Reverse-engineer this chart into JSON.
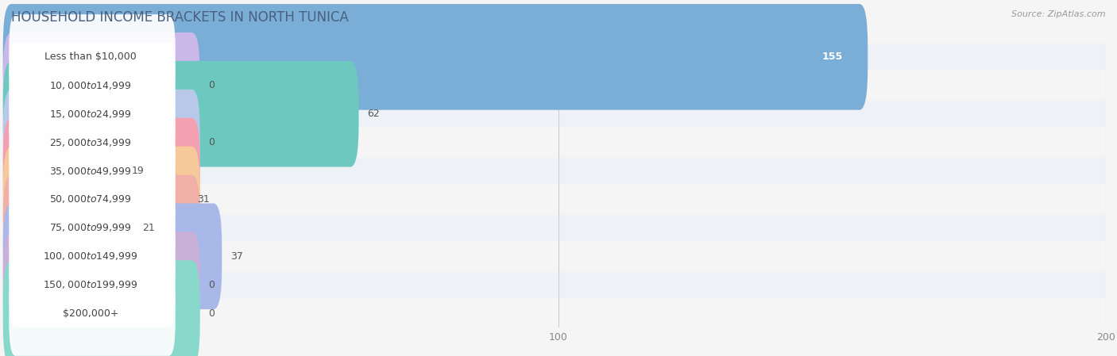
{
  "title": "HOUSEHOLD INCOME BRACKETS IN NORTH TUNICA",
  "source": "Source: ZipAtlas.com",
  "categories": [
    "Less than $10,000",
    "$10,000 to $14,999",
    "$15,000 to $24,999",
    "$25,000 to $34,999",
    "$35,000 to $49,999",
    "$50,000 to $74,999",
    "$75,000 to $99,999",
    "$100,000 to $149,999",
    "$150,000 to $199,999",
    "$200,000+"
  ],
  "values": [
    155,
    0,
    62,
    0,
    19,
    31,
    21,
    37,
    0,
    0
  ],
  "bar_colors": [
    "#7aaed6",
    "#c9b8e8",
    "#6dc8c0",
    "#b8c8e8",
    "#f4a0b0",
    "#f5c99a",
    "#f0b0a8",
    "#a8b8e8",
    "#c8b0d8",
    "#88d8cc"
  ],
  "row_colors": [
    "#e8eef5",
    "#f2f2f2",
    "#e8eef5",
    "#f2f2f2",
    "#e8eef5",
    "#f2f2f2",
    "#e8eef5",
    "#f2f2f2",
    "#e8eef5",
    "#f2f2f2"
  ],
  "xlim": [
    0,
    200
  ],
  "xticks": [
    0,
    100,
    200
  ],
  "background_color": "#f5f5f5",
  "title_color": "#4a6080",
  "title_fontsize": 12,
  "label_fontsize": 9,
  "value_fontsize": 9
}
